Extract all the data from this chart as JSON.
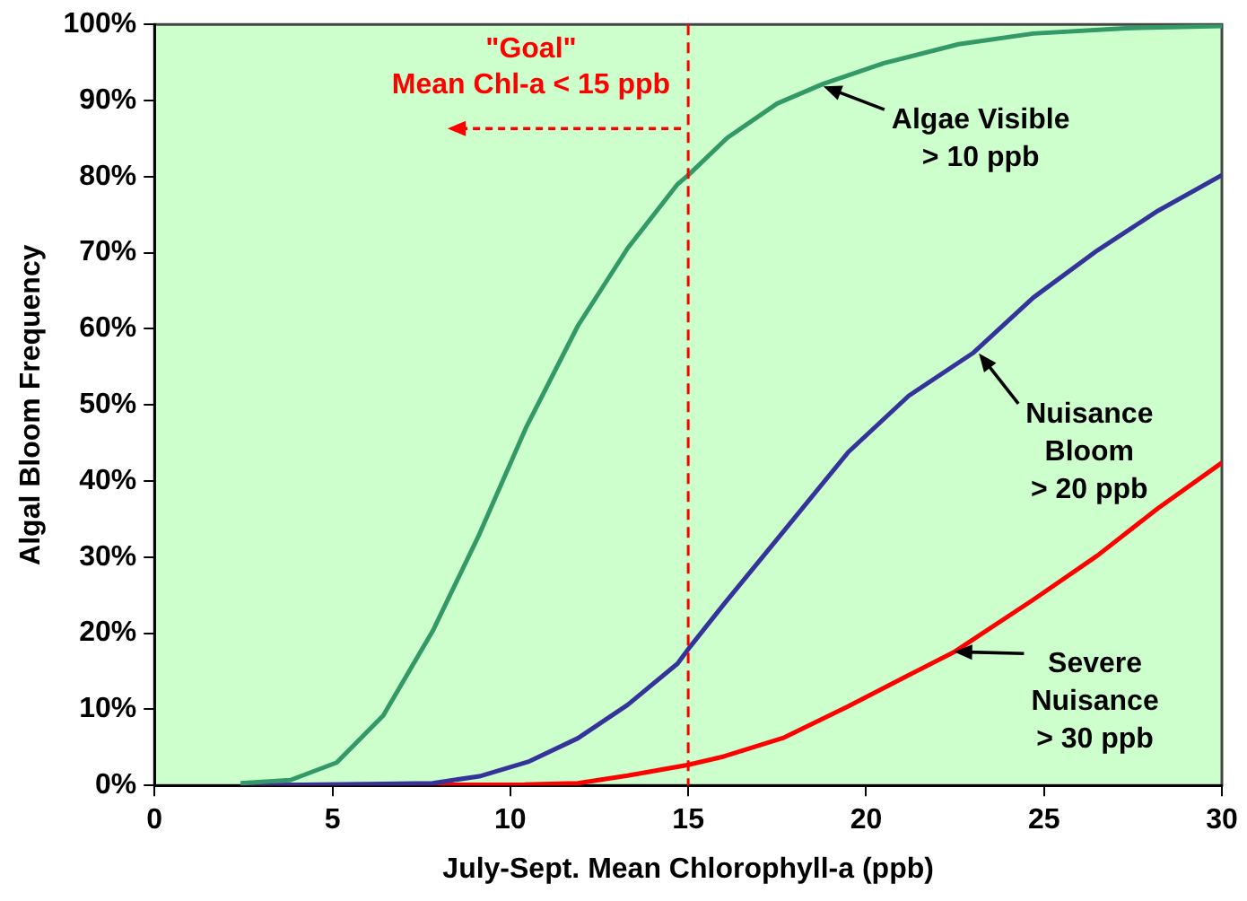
{
  "chart_data": {
    "type": "line",
    "xlabel": "July-Sept. Mean Chlorophyll-a (ppb)",
    "ylabel": "Algal Bloom Frequency",
    "series": [
      {
        "color": "#339966",
        "x": [
          2.42,
          3.82,
          5.12,
          6.43,
          7.82,
          9.13,
          10.44,
          11.9,
          13.3,
          14.7,
          15.05,
          16.1,
          17.5,
          18.8,
          20.5,
          22.6,
          24.7,
          27.3,
          30
        ],
        "values": [
          0.3,
          0.7,
          3,
          9.2,
          20.3,
          33,
          47,
          60.4,
          70.6,
          79,
          80.4,
          85.1,
          89.6,
          92.2,
          94.9,
          97.4,
          98.8,
          99.5,
          99.8
        ]
      },
      {
        "color": "#333399",
        "x": [
          2.42,
          6.43,
          7.82,
          9.13,
          10.5,
          11.9,
          13.3,
          14.7,
          15.05,
          16,
          17.7,
          19.5,
          21.2,
          23,
          24.7,
          26.5,
          28.2,
          30
        ],
        "values": [
          0,
          0.2,
          0.3,
          1.2,
          3.1,
          6.2,
          10.6,
          16,
          18.2,
          23.8,
          33.5,
          43.8,
          51.2,
          56.8,
          64.1,
          70.3,
          75.5,
          80.2
        ]
      },
      {
        "color": "#ff0000",
        "x": [
          2.42,
          10.4,
          11.9,
          13.3,
          15,
          16,
          17.7,
          19.5,
          21.2,
          22.5,
          24.7,
          26.5,
          28.2,
          30
        ],
        "values": [
          0,
          0.1,
          0.3,
          1.3,
          2.7,
          3.8,
          6.3,
          10.4,
          14.5,
          17.6,
          24.4,
          30.2,
          36.4,
          42.4
        ]
      }
    ],
    "xlim": [
      0,
      30
    ],
    "xticks": [
      0,
      5,
      10,
      15,
      20,
      25,
      30
    ],
    "ylim": [
      0,
      100
    ],
    "yticks": [
      {
        "value": 0,
        "label": "0%"
      },
      {
        "value": 10,
        "label": "10%"
      },
      {
        "value": 20,
        "label": "20%"
      },
      {
        "value": 30,
        "label": "30%"
      },
      {
        "value": 40,
        "label": "40%"
      },
      {
        "value": 50,
        "label": "50%"
      },
      {
        "value": 60,
        "label": "60%"
      },
      {
        "value": 70,
        "label": "70%"
      },
      {
        "value": 80,
        "label": "80%"
      },
      {
        "value": 90,
        "label": "90%"
      },
      {
        "value": 100,
        "label": "100%"
      }
    ],
    "grid": false,
    "legend": false,
    "marker": "none",
    "line_style": "solid",
    "ref_lines": [
      {
        "axis": "x",
        "value": 15,
        "label": "\"Goal\"\nMean Chl-a < 15 ppb",
        "color": "#ff0000",
        "line_style": "dashed"
      }
    ],
    "annotations": [
      {
        "text": "Algae Visible\n> 10 ppb",
        "x": 18.7,
        "y": 92.1
      },
      {
        "text": "Nuisance\nBloom\n> 20 ppb",
        "x": 23.07,
        "y": 57
      },
      {
        "text": "Severe\nNuisance\n> 30 ppb",
        "x": 22.37,
        "y": 17.8
      }
    ]
  }
}
